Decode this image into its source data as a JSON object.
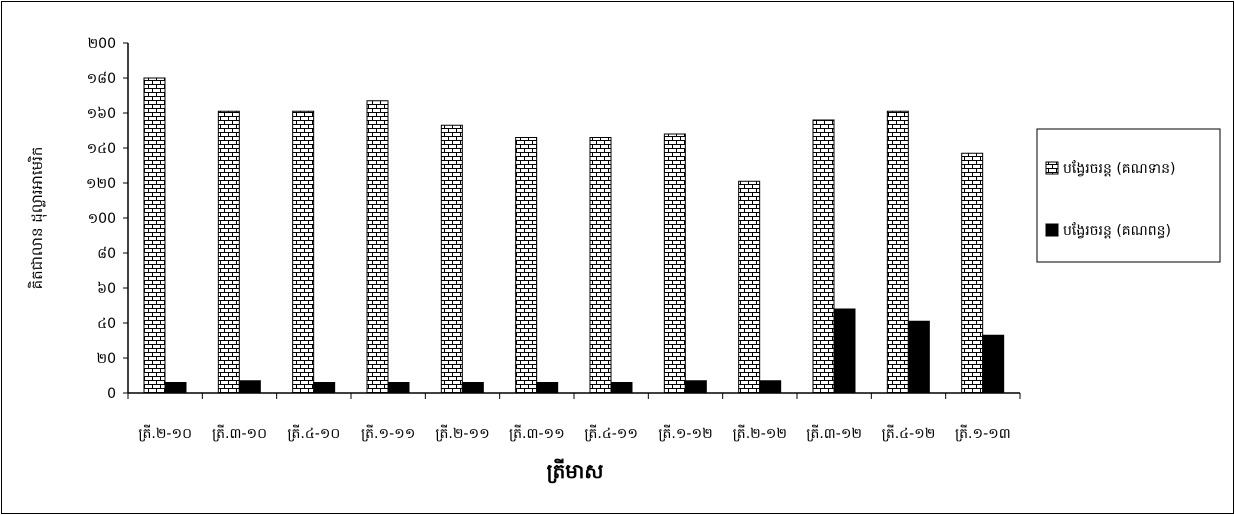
{
  "chart_data": {
    "type": "bar",
    "title": "",
    "xlabel": "ត្រីមាស",
    "ylabel": "គិតជាលាន ដុល្លារអាមេរិក",
    "ylim": [
      0,
      200
    ],
    "yticks": [
      0,
      20,
      40,
      60,
      80,
      100,
      120,
      140,
      160,
      180,
      200
    ],
    "ytick_labels": [
      "0",
      "២0",
      "៤0",
      "៦0",
      "៨0",
      "១00",
      "១២0",
      "១៤0",
      "១៦0",
      "១៨0",
      "២00"
    ],
    "categories": [
      "ត្រី.២-១០",
      "ត្រី.៣-១០",
      "ត្រី.៤-១០",
      "ត្រី.១-១១",
      "ត្រី.២-១១",
      "ត្រី.៣-១១",
      "ត្រី.៤-១១",
      "ត្រី.១-១២",
      "ត្រី.២-១២",
      "ត្រី.៣-១២",
      "ត្រី.៤-១២",
      "ត្រី.១-១៣"
    ],
    "series": [
      {
        "name": "បង្វែរចរន្ត (គណទាន)",
        "values": [
          180,
          161,
          161,
          167,
          153,
          146,
          146,
          148,
          121,
          156,
          161,
          137
        ]
      },
      {
        "name": "បង្វែរចរន្ត (គណពន្ធ)",
        "values": [
          6,
          7,
          6,
          6,
          6,
          6,
          6,
          7,
          7,
          48,
          41,
          33
        ]
      }
    ],
    "legend_position": "right",
    "grid": false
  }
}
